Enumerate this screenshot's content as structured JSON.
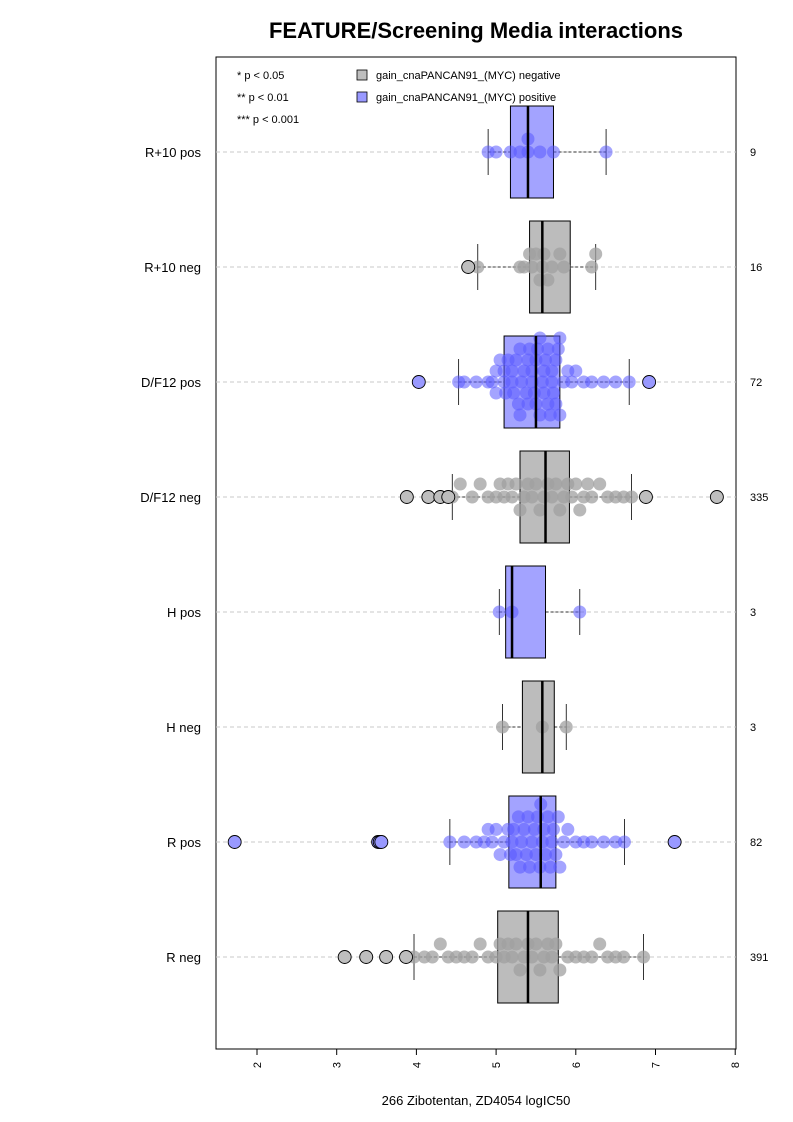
{
  "chart_data": {
    "type": "box",
    "title": "FEATURE/Screening Media interactions",
    "xlabel": "266 Zibotentan, ZD4054 logIC50",
    "ylabel": "",
    "xlim": [
      1.5,
      8
    ],
    "xticks": [
      "2",
      "3",
      "4",
      "5",
      "6",
      "7",
      "8"
    ],
    "orientation": "horizontal",
    "grid": "dashed horizontal lines at each category",
    "significance_legend": [
      "* p < 0.05",
      "** p < 0.01",
      "*** p < 0.001"
    ],
    "legend": [
      {
        "label": "gain_cnaPANCAN91_(MYC) negative",
        "color": "#bebebe"
      },
      {
        "label": "gain_cnaPANCAN91_(MYC) positive",
        "color": "#9999ff"
      }
    ],
    "categories": [
      {
        "label": "R+10 pos",
        "count": "9",
        "group": "positive",
        "box": {
          "whisker_low": 4.9,
          "q1": 5.18,
          "median": 5.4,
          "q3": 5.72,
          "whisker_high": 6.38
        },
        "outliers": [],
        "points": [
          4.9,
          5.0,
          5.18,
          5.3,
          5.4,
          5.4,
          5.55,
          5.72,
          6.38
        ]
      },
      {
        "label": "R+10 neg",
        "count": "16",
        "group": "negative",
        "box": {
          "whisker_low": 4.77,
          "q1": 5.42,
          "median": 5.58,
          "q3": 5.93,
          "whisker_high": 6.25
        },
        "outliers": [
          4.65
        ],
        "points": [
          4.77,
          5.3,
          5.35,
          5.42,
          5.45,
          5.5,
          5.55,
          5.58,
          5.6,
          5.65,
          5.7,
          5.8,
          5.85,
          6.2,
          6.25
        ]
      },
      {
        "label": "D/F12 pos",
        "count": "72",
        "group": "positive",
        "box": {
          "whisker_low": 4.53,
          "q1": 5.1,
          "median": 5.5,
          "q3": 5.8,
          "whisker_high": 6.67
        },
        "outliers": [
          4.03,
          6.92
        ],
        "points": [
          4.53,
          4.6,
          4.75,
          4.9,
          4.95,
          5.0,
          5.0,
          5.05,
          5.1,
          5.1,
          5.12,
          5.15,
          5.2,
          5.2,
          5.22,
          5.25,
          5.28,
          5.3,
          5.3,
          5.32,
          5.35,
          5.38,
          5.4,
          5.4,
          5.42,
          5.45,
          5.45,
          5.48,
          5.5,
          5.5,
          5.52,
          5.55,
          5.55,
          5.58,
          5.6,
          5.6,
          5.62,
          5.65,
          5.65,
          5.68,
          5.7,
          5.7,
          5.72,
          5.75,
          5.75,
          5.78,
          5.8,
          5.8,
          5.85,
          5.9,
          5.95,
          6.0,
          6.1,
          6.2,
          6.35,
          6.5,
          6.67
        ]
      },
      {
        "label": "D/F12 neg",
        "count": "335",
        "group": "negative",
        "box": {
          "whisker_low": 4.45,
          "q1": 5.3,
          "median": 5.62,
          "q3": 5.92,
          "whisker_high": 6.7
        },
        "outliers": [
          3.88,
          4.15,
          4.3,
          4.4,
          6.88,
          7.77
        ],
        "points": [
          4.45,
          4.55,
          4.7,
          4.8,
          4.9,
          5.0,
          5.05,
          5.1,
          5.15,
          5.2,
          5.25,
          5.3,
          5.35,
          5.4,
          5.45,
          5.5,
          5.55,
          5.6,
          5.65,
          5.7,
          5.75,
          5.8,
          5.85,
          5.9,
          5.95,
          6.0,
          6.05,
          6.1,
          6.15,
          6.2,
          6.3,
          6.4,
          6.5,
          6.6,
          6.7
        ]
      },
      {
        "label": "H pos",
        "count": "3",
        "group": "positive",
        "box": {
          "whisker_low": 5.04,
          "q1": 5.12,
          "median": 5.2,
          "q3": 5.62,
          "whisker_high": 6.05
        },
        "outliers": [],
        "points": [
          5.04,
          5.2,
          6.05
        ]
      },
      {
        "label": "H neg",
        "count": "3",
        "group": "negative",
        "box": {
          "whisker_low": 5.08,
          "q1": 5.33,
          "median": 5.58,
          "q3": 5.73,
          "whisker_high": 5.88
        },
        "outliers": [],
        "points": [
          5.08,
          5.58,
          5.88
        ]
      },
      {
        "label": "R pos",
        "count": "82",
        "group": "positive",
        "box": {
          "whisker_low": 4.42,
          "q1": 5.16,
          "median": 5.56,
          "q3": 5.75,
          "whisker_high": 6.61
        },
        "outliers": [
          1.72,
          3.52,
          3.54,
          3.56,
          7.24
        ],
        "points": [
          4.42,
          4.6,
          4.75,
          4.85,
          4.9,
          4.95,
          5.0,
          5.05,
          5.1,
          5.15,
          5.18,
          5.2,
          5.22,
          5.25,
          5.28,
          5.3,
          5.32,
          5.35,
          5.38,
          5.4,
          5.42,
          5.45,
          5.48,
          5.5,
          5.52,
          5.55,
          5.56,
          5.58,
          5.6,
          5.62,
          5.65,
          5.68,
          5.7,
          5.72,
          5.75,
          5.78,
          5.8,
          5.85,
          5.9,
          6.0,
          6.1,
          6.2,
          6.35,
          6.5,
          6.61
        ]
      },
      {
        "label": "R neg",
        "count": "391",
        "group": "negative",
        "box": {
          "whisker_low": 3.97,
          "q1": 5.02,
          "median": 5.4,
          "q3": 5.78,
          "whisker_high": 6.85
        },
        "outliers": [
          3.1,
          3.37,
          3.62,
          3.87
        ],
        "points": [
          3.97,
          4.1,
          4.2,
          4.3,
          4.4,
          4.5,
          4.6,
          4.7,
          4.8,
          4.9,
          5.0,
          5.05,
          5.1,
          5.15,
          5.2,
          5.25,
          5.3,
          5.35,
          5.4,
          5.45,
          5.5,
          5.55,
          5.6,
          5.65,
          5.7,
          5.75,
          5.8,
          5.9,
          6.0,
          6.1,
          6.2,
          6.3,
          6.4,
          6.5,
          6.6,
          6.85
        ]
      }
    ]
  }
}
